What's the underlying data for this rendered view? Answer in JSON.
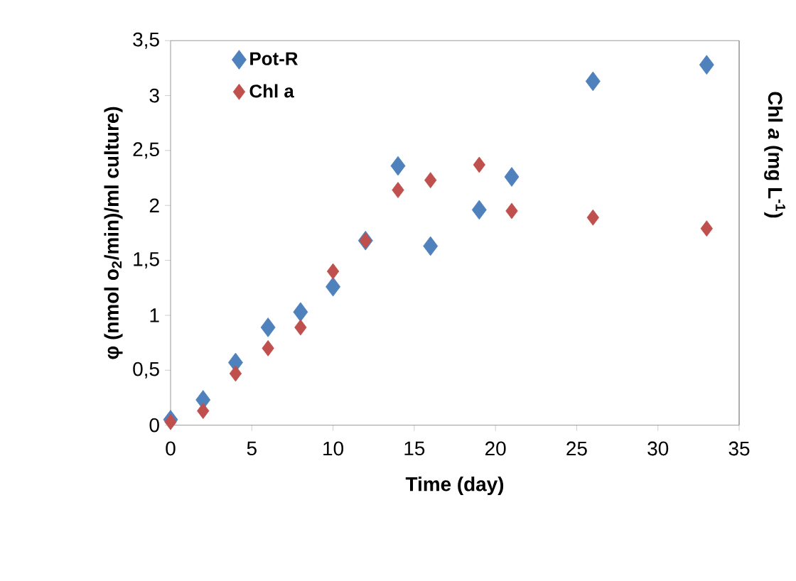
{
  "chart_data": {
    "type": "scatter",
    "xlabel": "Time (day)",
    "ylabel": "φ (nmol o$_{2}$/min)/ml culture)",
    "y2label": "Chl *a* (mg L$^{-1}$)",
    "x": [
      0,
      2,
      4,
      6,
      8,
      10,
      12,
      14,
      16,
      19,
      21,
      26,
      33
    ],
    "series": [
      {
        "name": "Pot-R",
        "color": "#4f81bd",
        "values": [
          0.05,
          0.23,
          0.57,
          0.89,
          1.03,
          1.26,
          1.68,
          2.36,
          1.63,
          1.96,
          2.26,
          3.13,
          3.28
        ]
      },
      {
        "name": "Chl a",
        "color": "#c0504d",
        "values": [
          0.03,
          0.13,
          0.47,
          0.7,
          0.89,
          1.4,
          1.68,
          2.14,
          2.23,
          2.37,
          1.95,
          1.89,
          1.79
        ]
      }
    ],
    "xlim": [
      0,
      35
    ],
    "xticks": [
      0,
      5,
      10,
      15,
      20,
      25,
      30,
      35
    ],
    "ylim": [
      0,
      3.5
    ],
    "yticks": [
      0,
      {
        "value": 0.5,
        "label": "0,5"
      },
      1,
      {
        "value": 1.5,
        "label": "1,5"
      },
      2,
      {
        "value": 2.5,
        "label": "2,5"
      },
      3,
      {
        "value": 3.5,
        "label": "3,5"
      }
    ],
    "marker": "diamond",
    "legend": "top left"
  }
}
